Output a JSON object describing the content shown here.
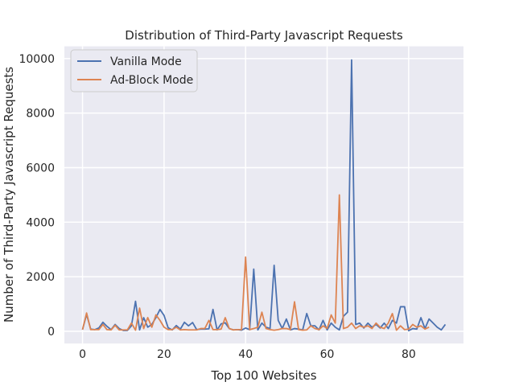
{
  "chart_data": {
    "type": "line",
    "title": "Distribution of Third-Party Javascript Requests",
    "xlabel": "Top 100 Websites",
    "ylabel": "Number of Third-Party Javascript Requests",
    "xlim": [
      -4.45,
      93.45
    ],
    "ylim": [
      -450,
      10450
    ],
    "xticks": [
      0,
      20,
      40,
      60,
      80
    ],
    "yticks": [
      0,
      2000,
      4000,
      6000,
      8000,
      10000
    ],
    "grid": true,
    "legend_position": "top-left",
    "background_color": "#eaeaf2",
    "series": [
      {
        "name": "Vanilla Mode",
        "color": "#4c72b0",
        "values": [
          60,
          620,
          80,
          60,
          120,
          330,
          180,
          60,
          250,
          100,
          30,
          30,
          200,
          1100,
          50,
          500,
          150,
          250,
          500,
          800,
          580,
          130,
          50,
          210,
          80,
          330,
          200,
          320,
          60,
          80,
          80,
          90,
          800,
          50,
          270,
          310,
          100,
          50,
          60,
          40,
          120,
          60,
          2280,
          50,
          300,
          150,
          100,
          2420,
          400,
          100,
          450,
          50,
          100,
          80,
          50,
          650,
          200,
          200,
          50,
          400,
          50,
          300,
          150,
          50,
          550,
          700,
          9950,
          250,
          300,
          120,
          300,
          150,
          250,
          120,
          300,
          100,
          400,
          300,
          900,
          900,
          20,
          100,
          80,
          500,
          100,
          450,
          300,
          150,
          50,
          250
        ]
      },
      {
        "name": "Ad-Block Mode",
        "color": "#dd8452",
        "values": [
          60,
          670,
          60,
          60,
          60,
          250,
          60,
          50,
          220,
          50,
          50,
          50,
          300,
          40,
          850,
          100,
          500,
          150,
          600,
          400,
          150,
          60,
          60,
          150,
          50,
          60,
          50,
          50,
          50,
          100,
          100,
          400,
          60,
          60,
          80,
          500,
          100,
          50,
          60,
          60,
          2720,
          60,
          100,
          150,
          700,
          100,
          60,
          40,
          60,
          100,
          100,
          60,
          1080,
          60,
          40,
          50,
          200,
          100,
          60,
          200,
          100,
          600,
          300,
          5000,
          100,
          150,
          300,
          100,
          200,
          150,
          200,
          100,
          300,
          150,
          100,
          300,
          650,
          40,
          200,
          60,
          80,
          250,
          150,
          200,
          80,
          150
        ]
      }
    ]
  }
}
